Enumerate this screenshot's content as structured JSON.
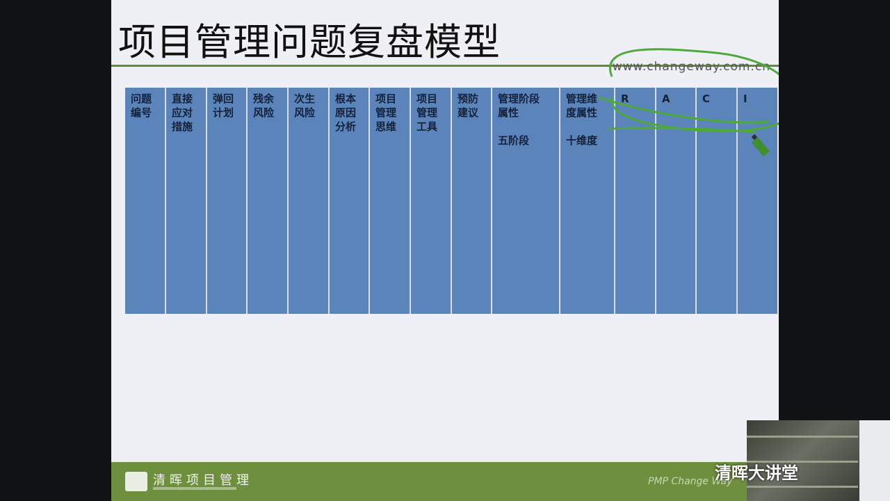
{
  "slide": {
    "title": "项目管理问题复盘模型",
    "url": "www.changeway.com.cn"
  },
  "table": {
    "columns": [
      {
        "label": "问题\n编号",
        "sub": ""
      },
      {
        "label": "直接\n应对\n措施",
        "sub": ""
      },
      {
        "label": "弹回\n计划",
        "sub": ""
      },
      {
        "label": "残余\n风险",
        "sub": ""
      },
      {
        "label": "次生\n风险",
        "sub": ""
      },
      {
        "label": "根本\n原因\n分析",
        "sub": ""
      },
      {
        "label": "项目\n管理\n思维",
        "sub": ""
      },
      {
        "label": "项目\n管理\n工具",
        "sub": ""
      },
      {
        "label": "预防\n建议",
        "sub": ""
      },
      {
        "label": "管理阶段\n属性",
        "sub": "五阶段"
      },
      {
        "label": "管理维\n度属性",
        "sub": "十维度"
      },
      {
        "label": "R",
        "sub": ""
      },
      {
        "label": "A",
        "sub": ""
      },
      {
        "label": "C",
        "sub": ""
      },
      {
        "label": "I",
        "sub": ""
      }
    ]
  },
  "footer": {
    "logo_text": "清晖项目管理",
    "right_text": "PMP Change Way"
  },
  "overlay": {
    "watermark": "清晖大讲堂"
  },
  "colors": {
    "slide_bg": "#eef0f6",
    "table_cell": "#5b84bb",
    "footer_bar": "#6e8f3e",
    "accent_rule": "#5e8a3a",
    "annotation_ink": "#4fa83a"
  }
}
